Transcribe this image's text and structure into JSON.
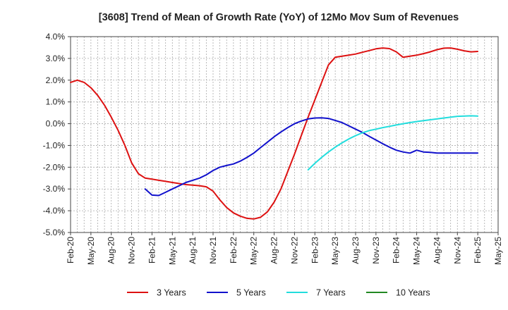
{
  "chart_data": {
    "type": "line",
    "title": "[3608]  Trend of Mean of Growth Rate (YoY) of 12Mo Mov Sum of Revenues",
    "xlabel": "",
    "ylabel": "",
    "ylim": [
      -5.0,
      4.0
    ],
    "y_ticks": [
      4.0,
      3.0,
      2.0,
      1.0,
      0.0,
      -1.0,
      -2.0,
      -3.0,
      -4.0,
      -5.0
    ],
    "y_tick_labels": [
      "4.0%",
      "3.0%",
      "2.0%",
      "1.0%",
      "0.0%",
      "-1.0%",
      "-2.0%",
      "-3.0%",
      "-4.0%",
      "-5.0%"
    ],
    "x_range": [
      0,
      63
    ],
    "x_ticks": [
      0,
      3,
      6,
      9,
      12,
      15,
      18,
      21,
      24,
      27,
      30,
      33,
      36,
      39,
      42,
      45,
      48,
      51,
      54,
      57,
      60,
      63
    ],
    "x_tick_labels": [
      "Feb-20",
      "May-20",
      "Aug-20",
      "Nov-20",
      "Feb-21",
      "May-21",
      "Aug-21",
      "Nov-21",
      "Feb-22",
      "May-22",
      "Aug-22",
      "Nov-22",
      "Feb-23",
      "May-23",
      "Aug-23",
      "Nov-23",
      "Feb-24",
      "May-24",
      "Aug-24",
      "Nov-24",
      "Feb-25",
      "May-25"
    ],
    "grid": true,
    "legend_position": "bottom",
    "series": [
      {
        "name": "3 Years",
        "color": "#dd1111",
        "x": [
          0,
          1,
          2,
          3,
          4,
          5,
          6,
          7,
          8,
          9,
          10,
          11,
          12,
          13,
          14,
          15,
          16,
          17,
          18,
          19,
          20,
          21,
          22,
          23,
          24,
          25,
          26,
          27,
          28,
          29,
          30,
          31,
          32,
          33,
          34,
          35,
          36,
          37,
          38,
          39,
          40,
          41,
          42,
          43,
          44,
          45,
          46,
          47,
          48,
          49,
          50,
          51,
          52,
          53,
          54,
          55,
          56,
          57,
          58,
          59,
          60
        ],
        "y": [
          1.9,
          2.0,
          1.9,
          1.65,
          1.3,
          0.85,
          0.3,
          -0.3,
          -1.0,
          -1.8,
          -2.3,
          -2.5,
          -2.55,
          -2.6,
          -2.65,
          -2.7,
          -2.75,
          -2.8,
          -2.82,
          -2.85,
          -2.9,
          -3.1,
          -3.5,
          -3.85,
          -4.1,
          -4.25,
          -4.35,
          -4.38,
          -4.3,
          -4.05,
          -3.6,
          -3.0,
          -2.2,
          -1.4,
          -0.55,
          0.3,
          1.1,
          1.9,
          2.7,
          3.05,
          3.1,
          3.15,
          3.2,
          3.28,
          3.36,
          3.44,
          3.48,
          3.45,
          3.3,
          3.05,
          3.1,
          3.15,
          3.22,
          3.3,
          3.4,
          3.47,
          3.48,
          3.42,
          3.35,
          3.3,
          3.32
        ]
      },
      {
        "name": "5 Years",
        "color": "#1111cc",
        "x": [
          11,
          12,
          13,
          14,
          15,
          16,
          17,
          18,
          19,
          20,
          21,
          22,
          23,
          24,
          25,
          26,
          27,
          28,
          29,
          30,
          31,
          32,
          33,
          34,
          35,
          36,
          37,
          38,
          39,
          40,
          41,
          42,
          43,
          44,
          45,
          46,
          47,
          48,
          49,
          50,
          51,
          52,
          53,
          54,
          55,
          56,
          57,
          58,
          59,
          60
        ],
        "y": [
          -3.0,
          -3.28,
          -3.3,
          -3.15,
          -3.0,
          -2.85,
          -2.7,
          -2.6,
          -2.5,
          -2.35,
          -2.15,
          -2.0,
          -1.92,
          -1.85,
          -1.72,
          -1.55,
          -1.35,
          -1.1,
          -0.85,
          -0.6,
          -0.38,
          -0.18,
          0.0,
          0.12,
          0.22,
          0.26,
          0.27,
          0.24,
          0.15,
          0.05,
          -0.1,
          -0.25,
          -0.4,
          -0.58,
          -0.75,
          -0.92,
          -1.08,
          -1.22,
          -1.3,
          -1.35,
          -1.22,
          -1.3,
          -1.32,
          -1.35,
          -1.35,
          -1.35,
          -1.35,
          -1.35,
          -1.35,
          -1.35
        ]
      },
      {
        "name": "7 Years",
        "color": "#22dddd",
        "x": [
          35,
          36,
          37,
          38,
          39,
          40,
          41,
          42,
          43,
          44,
          45,
          46,
          47,
          48,
          49,
          50,
          51,
          52,
          53,
          54,
          55,
          56,
          57,
          58,
          59,
          60
        ],
        "y": [
          -2.12,
          -1.82,
          -1.55,
          -1.3,
          -1.08,
          -0.88,
          -0.7,
          -0.55,
          -0.42,
          -0.32,
          -0.25,
          -0.18,
          -0.12,
          -0.06,
          0.0,
          0.05,
          0.1,
          0.14,
          0.18,
          0.22,
          0.26,
          0.3,
          0.34,
          0.35,
          0.36,
          0.35
        ]
      },
      {
        "name": "10 Years",
        "color": "#228822",
        "x": [],
        "y": []
      }
    ]
  }
}
